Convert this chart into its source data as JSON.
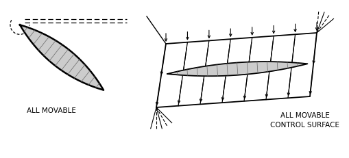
{
  "bg_color": "#ffffff",
  "line_color": "#000000",
  "label1": "ALL MOVABLE",
  "label2": "ALL MOVABLE\nCONTROL SURFACE",
  "label_fontsize": 7.5,
  "figsize": [
    5.09,
    2.32
  ],
  "dpi": 100
}
